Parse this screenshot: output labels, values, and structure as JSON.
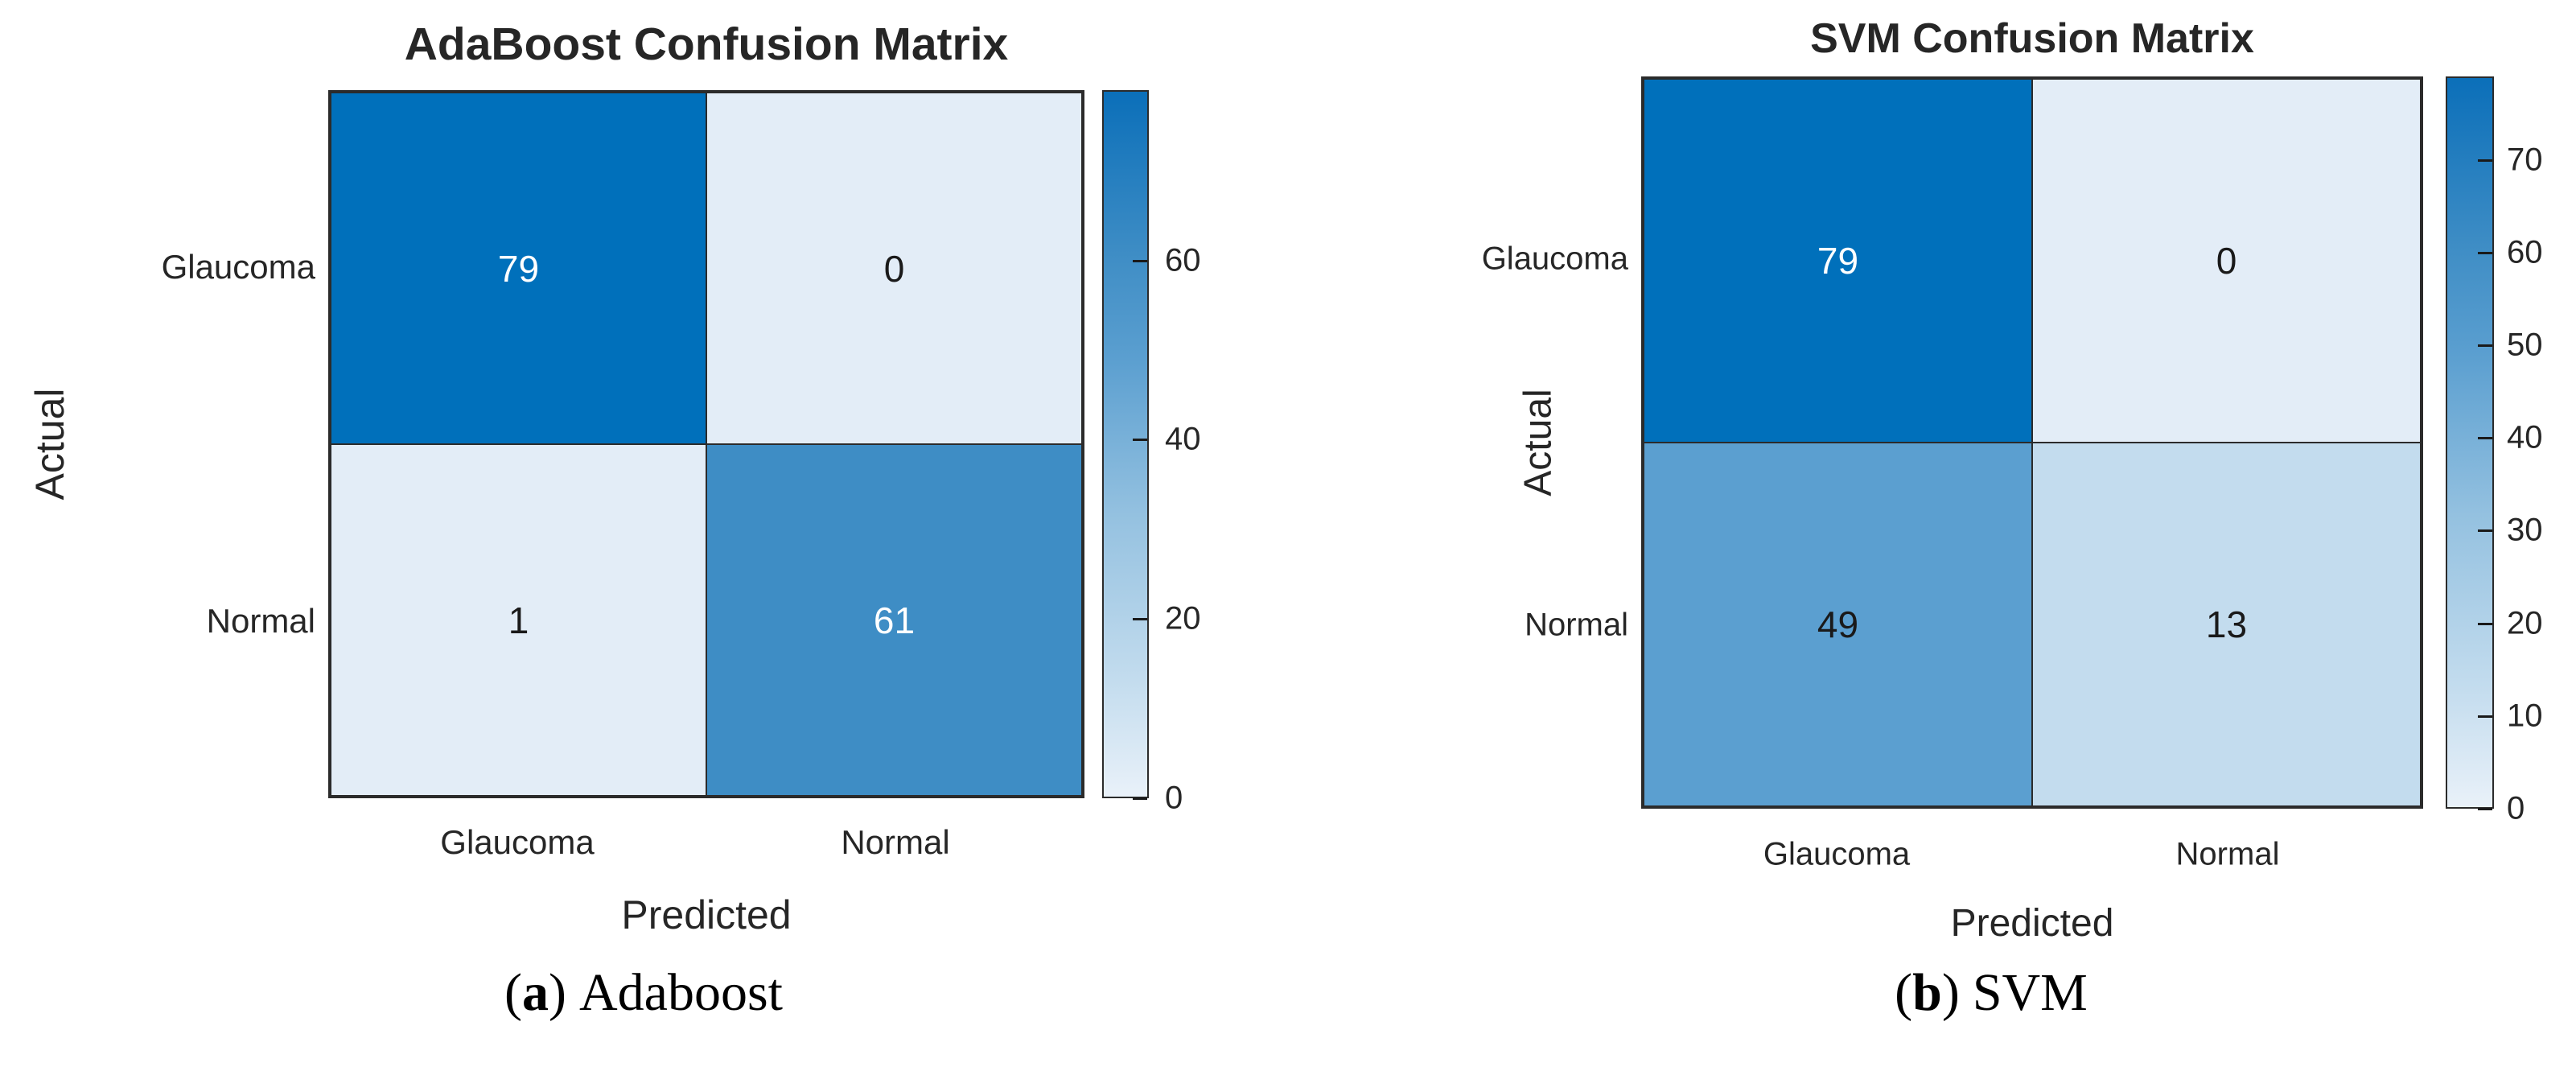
{
  "colors": {
    "dark_blue": "#0070bb",
    "mid_blue_61": "#3e8dc5",
    "mid_blue_49": "#5b9fd0",
    "light_blue_13": "#c3dcee",
    "lightest_cell": "#e3edf7",
    "border": "#2b2b2b",
    "text": "#262626"
  },
  "chart_data": [
    {
      "type": "heatmap",
      "title": "AdaBoost Confusion Matrix",
      "xlabel": "Predicted",
      "ylabel": "Actual",
      "x_categories": [
        "Glaucoma",
        "Normal"
      ],
      "y_categories": [
        "Glaucoma",
        "Normal"
      ],
      "values": [
        [
          79,
          0
        ],
        [
          1,
          61
        ]
      ],
      "cell_colors": [
        [
          "#0070bb",
          "#e3edf7"
        ],
        [
          "#e3edf7",
          "#3e8dc5"
        ]
      ],
      "cell_text_colors": [
        [
          "#ffffff",
          "#1a1a1a"
        ],
        [
          "#1a1a1a",
          "#ffffff"
        ]
      ],
      "colorbar": {
        "vmin": 0,
        "vmax": 79,
        "ticks": [
          0,
          20,
          40,
          60
        ]
      },
      "caption": {
        "open": "(",
        "letter": "a",
        "close": ")",
        "text": "Adaboost"
      }
    },
    {
      "type": "heatmap",
      "title": "SVM Confusion Matrix",
      "xlabel": "Predicted",
      "ylabel": "Actual",
      "x_categories": [
        "Glaucoma",
        "Normal"
      ],
      "y_categories": [
        "Glaucoma",
        "Normal"
      ],
      "values": [
        [
          79,
          0
        ],
        [
          49,
          13
        ]
      ],
      "cell_colors": [
        [
          "#0070bb",
          "#e3edf7"
        ],
        [
          "#5b9fd0",
          "#c3dcee"
        ]
      ],
      "cell_text_colors": [
        [
          "#ffffff",
          "#1a1a1a"
        ],
        [
          "#1a1a1a",
          "#1a1a1a"
        ]
      ],
      "colorbar": {
        "vmin": 0,
        "vmax": 79,
        "ticks": [
          0,
          10,
          20,
          30,
          40,
          50,
          60,
          70
        ]
      },
      "caption": {
        "open": "(",
        "letter": "b",
        "close": ")",
        "text": "SVM"
      }
    }
  ]
}
